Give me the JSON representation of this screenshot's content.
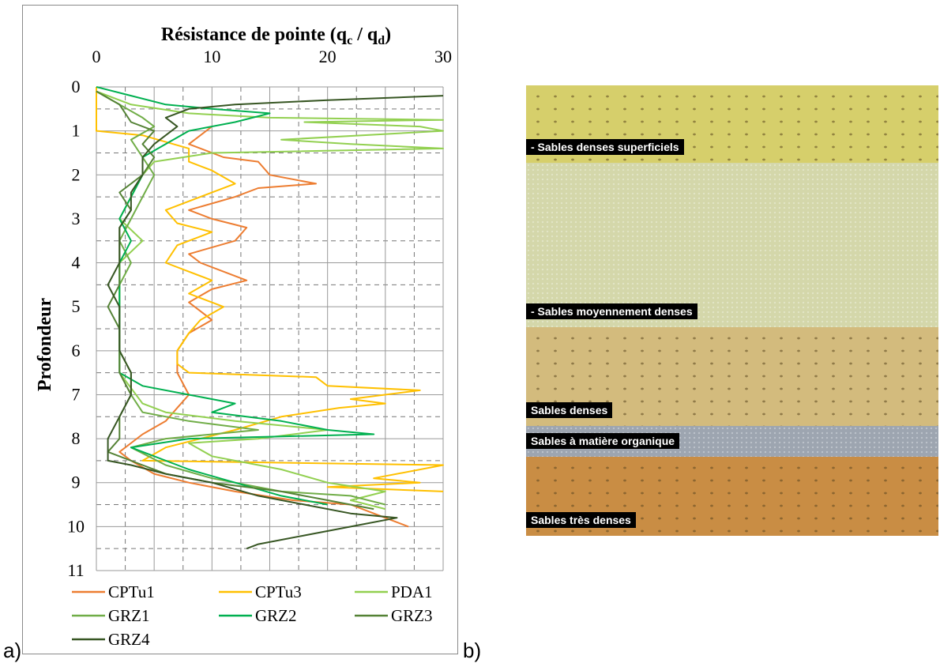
{
  "panel_a_label": "a)",
  "panel_b_label": "b)",
  "chart_data": {
    "type": "line",
    "title": "Résistance de pointe (q",
    "title_sub1": "c",
    "title_mid": " / q",
    "title_sub2": "d",
    "title_end": ")",
    "xlabel": "",
    "ylabel": "Profondeur",
    "xlim": [
      0,
      30
    ],
    "ylim": [
      0,
      11
    ],
    "x_ticks": [
      "0",
      "10",
      "20",
      "30"
    ],
    "y_ticks": [
      "0",
      "1",
      "2",
      "3",
      "4",
      "5",
      "6",
      "7",
      "8",
      "9",
      "10",
      "11"
    ],
    "y_inverted": true,
    "x_axis_position": "top",
    "grid": true,
    "legend_position": "bottom",
    "series": [
      {
        "name": "CPTu1",
        "color": "#ed7d31",
        "points": [
          [
            10,
            0.9
          ],
          [
            8,
            1.3
          ],
          [
            11,
            1.6
          ],
          [
            14,
            1.7
          ],
          [
            15,
            2.0
          ],
          [
            19,
            2.2
          ],
          [
            14,
            2.3
          ],
          [
            12,
            2.5
          ],
          [
            8,
            2.8
          ],
          [
            10,
            3.0
          ],
          [
            13,
            3.2
          ],
          [
            12,
            3.5
          ],
          [
            8,
            3.8
          ],
          [
            9,
            4.0
          ],
          [
            11,
            4.2
          ],
          [
            13,
            4.4
          ],
          [
            10,
            4.6
          ],
          [
            8,
            4.9
          ],
          [
            9,
            5.1
          ],
          [
            10,
            5.3
          ],
          [
            8,
            5.6
          ],
          [
            7,
            6.0
          ],
          [
            7,
            6.5
          ],
          [
            8,
            7.0
          ],
          [
            7,
            7.3
          ],
          [
            6,
            7.6
          ],
          [
            4,
            7.9
          ],
          [
            2,
            8.3
          ],
          [
            3,
            8.5
          ],
          [
            5,
            8.8
          ],
          [
            8,
            9.0
          ],
          [
            12,
            9.2
          ],
          [
            17,
            9.4
          ],
          [
            22,
            9.5
          ],
          [
            24,
            9.7
          ],
          [
            27,
            10.0
          ]
        ]
      },
      {
        "name": "CPTu3",
        "color": "#ffc000",
        "points": [
          [
            0,
            0.0
          ],
          [
            0,
            0.5
          ],
          [
            0,
            1.0
          ],
          [
            4,
            1.1
          ],
          [
            8,
            1.4
          ],
          [
            8,
            1.7
          ],
          [
            10,
            1.9
          ],
          [
            12,
            2.2
          ],
          [
            9,
            2.5
          ],
          [
            6,
            2.8
          ],
          [
            7,
            3.1
          ],
          [
            10,
            3.3
          ],
          [
            7,
            3.6
          ],
          [
            6,
            4.0
          ],
          [
            8,
            4.2
          ],
          [
            10,
            4.4
          ],
          [
            8,
            4.7
          ],
          [
            11,
            5.0
          ],
          [
            9,
            5.3
          ],
          [
            8,
            5.6
          ],
          [
            7,
            6.0
          ],
          [
            7,
            6.3
          ],
          [
            8,
            6.5
          ],
          [
            19,
            6.6
          ],
          [
            20,
            6.8
          ],
          [
            28,
            6.9
          ],
          [
            22,
            7.1
          ],
          [
            25,
            7.2
          ],
          [
            21,
            7.3
          ],
          [
            16,
            7.5
          ],
          [
            12,
            7.8
          ],
          [
            6,
            8.2
          ],
          [
            4,
            8.5
          ],
          [
            30,
            8.6
          ],
          [
            24,
            8.9
          ],
          [
            28,
            9.0
          ],
          [
            20,
            9.1
          ],
          [
            30,
            9.2
          ]
        ]
      },
      {
        "name": "PDA1",
        "color": "#92d050",
        "points": [
          [
            0,
            0.1
          ],
          [
            3,
            0.4
          ],
          [
            8,
            0.6
          ],
          [
            15,
            0.7
          ],
          [
            30,
            0.75
          ],
          [
            18,
            0.8
          ],
          [
            28,
            0.9
          ],
          [
            30,
            1.0
          ],
          [
            16,
            1.2
          ],
          [
            22,
            1.3
          ],
          [
            30,
            1.4
          ],
          [
            10,
            1.5
          ],
          [
            5,
            1.7
          ],
          [
            4,
            2.0
          ],
          [
            3,
            2.5
          ],
          [
            2,
            3.0
          ],
          [
            4,
            3.5
          ],
          [
            2,
            4.0
          ],
          [
            2,
            4.5
          ],
          [
            2,
            5.0
          ],
          [
            2,
            5.5
          ],
          [
            2,
            6.0
          ],
          [
            2,
            6.5
          ],
          [
            4,
            7.2
          ],
          [
            6,
            7.4
          ],
          [
            12,
            7.6
          ],
          [
            20,
            7.8
          ],
          [
            14,
            8.0
          ],
          [
            8,
            8.1
          ],
          [
            10,
            8.4
          ],
          [
            16,
            8.7
          ],
          [
            20,
            9.0
          ],
          [
            25,
            9.2
          ],
          [
            22,
            9.4
          ],
          [
            25,
            9.6
          ]
        ]
      },
      {
        "name": "GRZ1",
        "color": "#70ad47",
        "points": [
          [
            0,
            0.1
          ],
          [
            2,
            0.4
          ],
          [
            4,
            0.7
          ],
          [
            5,
            0.9
          ],
          [
            3,
            1.2
          ],
          [
            4,
            1.6
          ],
          [
            5,
            2.0
          ],
          [
            4,
            2.5
          ],
          [
            3,
            3.0
          ],
          [
            2,
            3.5
          ],
          [
            3,
            4.0
          ],
          [
            2,
            4.5
          ],
          [
            2,
            5.0
          ],
          [
            2,
            5.5
          ],
          [
            2,
            6.0
          ],
          [
            3,
            6.5
          ],
          [
            3,
            7.0
          ],
          [
            4,
            7.4
          ],
          [
            8,
            7.6
          ],
          [
            14,
            7.8
          ],
          [
            6,
            8.0
          ],
          [
            3,
            8.2
          ],
          [
            6,
            8.6
          ],
          [
            10,
            8.9
          ],
          [
            16,
            9.2
          ],
          [
            22,
            9.3
          ],
          [
            25,
            9.5
          ]
        ]
      },
      {
        "name": "GRZ2",
        "color": "#00b050",
        "points": [
          [
            0,
            0.0
          ],
          [
            3,
            0.2
          ],
          [
            6,
            0.4
          ],
          [
            10,
            0.5
          ],
          [
            15,
            0.6
          ],
          [
            12,
            0.8
          ],
          [
            8,
            1.0
          ],
          [
            6,
            1.3
          ],
          [
            4,
            1.6
          ],
          [
            4,
            2.0
          ],
          [
            3,
            2.5
          ],
          [
            2,
            3.0
          ],
          [
            3,
            3.5
          ],
          [
            2,
            4.0
          ],
          [
            2,
            4.5
          ],
          [
            2,
            5.0
          ],
          [
            2,
            5.5
          ],
          [
            2,
            6.0
          ],
          [
            2,
            6.5
          ],
          [
            4,
            6.8
          ],
          [
            8,
            7.0
          ],
          [
            12,
            7.2
          ],
          [
            10,
            7.4
          ],
          [
            16,
            7.6
          ],
          [
            20,
            7.8
          ],
          [
            24,
            7.9
          ],
          [
            8,
            8.0
          ],
          [
            3,
            8.2
          ],
          [
            8,
            8.7
          ],
          [
            12,
            9.0
          ],
          [
            16,
            9.3
          ],
          [
            20,
            9.5
          ]
        ]
      },
      {
        "name": "GRZ3",
        "color": "#548235",
        "points": [
          [
            0,
            0.1
          ],
          [
            2,
            0.4
          ],
          [
            3,
            0.8
          ],
          [
            5,
            1.0
          ],
          [
            4,
            1.3
          ],
          [
            5,
            1.6
          ],
          [
            4,
            2.0
          ],
          [
            2,
            2.4
          ],
          [
            3,
            2.8
          ],
          [
            2,
            3.2
          ],
          [
            2,
            3.6
          ],
          [
            2,
            4.0
          ],
          [
            2,
            4.5
          ],
          [
            1,
            5.0
          ],
          [
            2,
            5.5
          ],
          [
            2,
            6.0
          ],
          [
            2,
            6.5
          ],
          [
            3,
            7.0
          ],
          [
            2,
            7.5
          ],
          [
            2,
            8.0
          ],
          [
            1,
            8.3
          ],
          [
            4,
            8.6
          ],
          [
            6,
            8.8
          ],
          [
            10,
            9.0
          ],
          [
            16,
            9.2
          ],
          [
            20,
            9.4
          ],
          [
            24,
            9.6
          ]
        ]
      },
      {
        "name": "GRZ4",
        "color": "#375623",
        "points": [
          [
            30,
            0.2
          ],
          [
            20,
            0.3
          ],
          [
            12,
            0.4
          ],
          [
            8,
            0.5
          ],
          [
            6,
            0.7
          ],
          [
            7,
            0.9
          ],
          [
            6,
            1.1
          ],
          [
            5,
            1.3
          ],
          [
            4,
            1.6
          ],
          [
            4,
            2.0
          ],
          [
            3,
            2.4
          ],
          [
            3,
            2.8
          ],
          [
            2,
            3.2
          ],
          [
            2,
            3.6
          ],
          [
            2,
            4.0
          ],
          [
            1,
            4.5
          ],
          [
            2,
            5.0
          ],
          [
            2,
            5.5
          ],
          [
            2,
            6.0
          ],
          [
            3,
            6.5
          ],
          [
            3,
            7.0
          ],
          [
            2,
            7.5
          ],
          [
            1,
            8.0
          ],
          [
            1,
            8.5
          ],
          [
            3,
            8.6
          ],
          [
            6,
            8.8
          ],
          [
            10,
            9.0
          ],
          [
            14,
            9.3
          ],
          [
            18,
            9.5
          ],
          [
            22,
            9.7
          ],
          [
            26,
            9.8
          ],
          [
            22,
            10.0
          ],
          [
            18,
            10.2
          ],
          [
            14,
            10.4
          ],
          [
            13,
            10.5
          ]
        ]
      }
    ]
  },
  "panel_b": {
    "layers": [
      {
        "label": "- Sables denses superficiels",
        "color": "#d6cf6b",
        "top_pct": 0,
        "bottom_pct": 17.2
      },
      {
        "label": "- Sables moyennement denses",
        "color": "#d4d7aa",
        "top_pct": 17.2,
        "bottom_pct": 53.7
      },
      {
        "label": "Sables denses",
        "color": "#d3bb7d",
        "top_pct": 53.7,
        "bottom_pct": 75.6
      },
      {
        "label": "Sables à matière organique",
        "color": "#9da5b0",
        "top_pct": 75.6,
        "bottom_pct": 82.5
      },
      {
        "label": "Sables très denses",
        "color": "#c98d44",
        "top_pct": 82.5,
        "bottom_pct": 100
      }
    ]
  }
}
